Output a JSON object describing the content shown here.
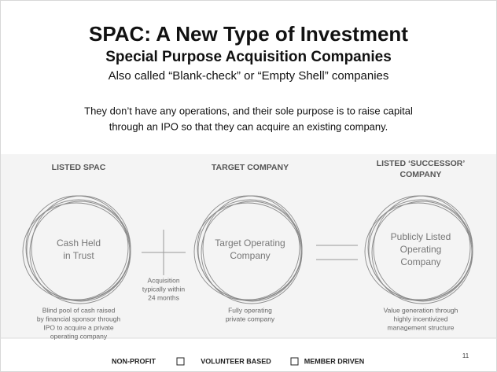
{
  "title": "SPAC: A New Type of Investment",
  "subtitle": "Special Purpose Acquisition Companies",
  "aka": "Also called “Blank-check” or “Empty Shell” companies",
  "description": [
    "They don’t have any operations, and their sole purpose is to raise capital",
    "through an IPO so that they can acquire an existing company."
  ],
  "diagram": {
    "columns": [
      {
        "heading": [
          "LISTED SPAC"
        ],
        "circle": [
          "Cash Held",
          "in Trust"
        ],
        "caption": [
          "Blind pool of cash raised",
          "by financial sponsor through",
          "IPO to acquire a private",
          "operating company"
        ]
      },
      {
        "heading": [
          "TARGET COMPANY"
        ],
        "circle": [
          "Target Operating",
          "Company"
        ],
        "caption": [
          "Fully operating",
          "private company"
        ]
      },
      {
        "heading": [
          "LISTED ‘SUCCESSOR’",
          "COMPANY"
        ],
        "circle": [
          "Publicly Listed",
          "Operating",
          "Company"
        ],
        "caption": [
          "Value generation through",
          "highly incentivized",
          "management structure"
        ]
      }
    ],
    "connector": [
      "Acquisition",
      "typically within",
      "24 months"
    ]
  },
  "footer": {
    "items": [
      "NON-PROFIT",
      "VOLUNTEER BASED",
      "MEMBER DRIVEN"
    ],
    "page": "11"
  }
}
